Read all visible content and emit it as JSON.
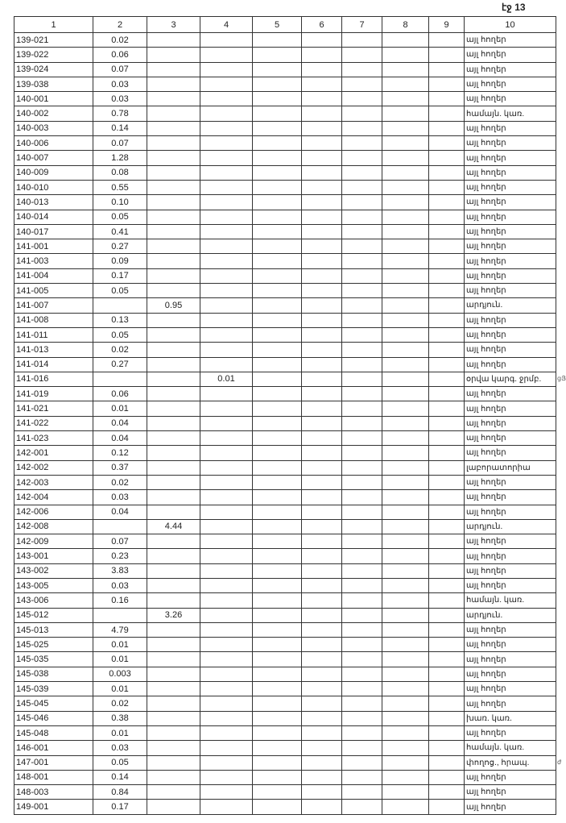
{
  "page_label": "էջ 13",
  "columns": [
    "1",
    "2",
    "3",
    "4",
    "5",
    "6",
    "7",
    "8",
    "9",
    "10"
  ],
  "rows": [
    [
      "139-021",
      "0.02",
      "",
      "",
      "այլ հողեր"
    ],
    [
      "139-022",
      "0.06",
      "",
      "",
      "այլ հողեր"
    ],
    [
      "139-024",
      "0.07",
      "",
      "",
      "այլ հողեր"
    ],
    [
      "139-038",
      "0.03",
      "",
      "",
      "այլ հողեր"
    ],
    [
      "140-001",
      "0.03",
      "",
      "",
      "այլ հողեր"
    ],
    [
      "140-002",
      "0.78",
      "",
      "",
      "համայն. կառ."
    ],
    [
      "140-003",
      "0.14",
      "",
      "",
      "այլ հողեր"
    ],
    [
      "140-006",
      "0.07",
      "",
      "",
      "այլ հողեր"
    ],
    [
      "140-007",
      "1.28",
      "",
      "",
      "այլ հողեր"
    ],
    [
      "140-009",
      "0.08",
      "",
      "",
      "այլ հողեր"
    ],
    [
      "140-010",
      "0.55",
      "",
      "",
      "այլ հողեր"
    ],
    [
      "140-013",
      "0.10",
      "",
      "",
      "այլ հողեր"
    ],
    [
      "140-014",
      "0.05",
      "",
      "",
      "այլ հողեր"
    ],
    [
      "140-017",
      "0.41",
      "",
      "",
      "այլ հողեր"
    ],
    [
      "141-001",
      "0.27",
      "",
      "",
      "այլ հողեր"
    ],
    [
      "141-003",
      "0.09",
      "",
      "",
      "այլ հողեր"
    ],
    [
      "141-004",
      "0.17",
      "",
      "",
      "այլ հողեր"
    ],
    [
      "141-005",
      "0.05",
      "",
      "",
      "այլ հողեր"
    ],
    [
      "141-007",
      "",
      "0.95",
      "",
      "արդյուն."
    ],
    [
      "141-008",
      "0.13",
      "",
      "",
      "այլ հողեր"
    ],
    [
      "141-011",
      "0.05",
      "",
      "",
      "այլ հողեր"
    ],
    [
      "141-013",
      "0.02",
      "",
      "",
      "այլ հողեր"
    ],
    [
      "141-014",
      "0.27",
      "",
      "",
      "այլ հողեր"
    ],
    [
      "141-016",
      "",
      "",
      "0.01",
      "օրվա կարգ. ջրմբ."
    ],
    [
      "141-019",
      "0.06",
      "",
      "",
      "այլ հողեր"
    ],
    [
      "141-021",
      "0.01",
      "",
      "",
      "այլ հողեր"
    ],
    [
      "141-022",
      "0.04",
      "",
      "",
      "այլ հողեր"
    ],
    [
      "141-023",
      "0.04",
      "",
      "",
      "այլ հողեր"
    ],
    [
      "142-001",
      "0.12",
      "",
      "",
      "այլ հողեր"
    ],
    [
      "142-002",
      "0.37",
      "",
      "",
      "լաբորատորիա"
    ],
    [
      "142-003",
      "0.02",
      "",
      "",
      "այլ հողեր"
    ],
    [
      "142-004",
      "0.03",
      "",
      "",
      "այլ հողեր"
    ],
    [
      "142-006",
      "0.04",
      "",
      "",
      "այլ հողեր"
    ],
    [
      "142-008",
      "",
      "4.44",
      "",
      "արդյուն."
    ],
    [
      "142-009",
      "0.07",
      "",
      "",
      "այլ հողեր"
    ],
    [
      "143-001",
      "0.23",
      "",
      "",
      "այլ հողեր"
    ],
    [
      "143-002",
      "3.83",
      "",
      "",
      "այլ հողեր"
    ],
    [
      "143-005",
      "0.03",
      "",
      "",
      "այլ հողեր"
    ],
    [
      "143-006",
      "0.16",
      "",
      "",
      "համայն. կառ."
    ],
    [
      "145-012",
      "",
      "3.26",
      "",
      "արդյուն."
    ],
    [
      "145-013",
      "4.79",
      "",
      "",
      "այլ հողեր"
    ],
    [
      "145-025",
      "0.01",
      "",
      "",
      "այլ հողեր"
    ],
    [
      "145-035",
      "0.01",
      "",
      "",
      "այլ հողեր"
    ],
    [
      "145-038",
      "0.003",
      "",
      "",
      "այլ հողեր"
    ],
    [
      "145-039",
      "0.01",
      "",
      "",
      "այլ հողեր"
    ],
    [
      "145-045",
      "0.02",
      "",
      "",
      "այլ հողեր"
    ],
    [
      "145-046",
      "0.38",
      "",
      "",
      "խառ. կառ."
    ],
    [
      "145-048",
      "0.01",
      "",
      "",
      "այլ հողեր"
    ],
    [
      "146-001",
      "0.03",
      "",
      "",
      "համայն. կառ."
    ],
    [
      "147-001",
      "0.05",
      "",
      "",
      "փողոց., հրապ."
    ],
    [
      "148-001",
      "0.14",
      "",
      "",
      "այլ հողեր"
    ],
    [
      "148-003",
      "0.84",
      "",
      "",
      "այլ հողեր"
    ],
    [
      "149-001",
      "0.17",
      "",
      "",
      "այլ հողեր"
    ]
  ],
  "margin_notes": [
    {
      "row": 23,
      "text": "ցՅ"
    },
    {
      "row": 49,
      "text": "ժ"
    }
  ]
}
